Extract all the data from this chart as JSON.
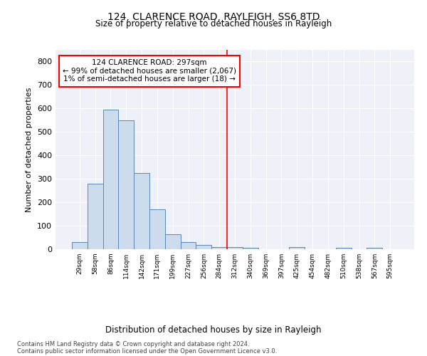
{
  "title": "124, CLARENCE ROAD, RAYLEIGH, SS6 8TD",
  "subtitle": "Size of property relative to detached houses in Rayleigh",
  "xlabel": "Distribution of detached houses by size in Rayleigh",
  "ylabel": "Number of detached properties",
  "bin_labels": [
    "29sqm",
    "58sqm",
    "86sqm",
    "114sqm",
    "142sqm",
    "171sqm",
    "199sqm",
    "227sqm",
    "256sqm",
    "284sqm",
    "312sqm",
    "340sqm",
    "369sqm",
    "397sqm",
    "425sqm",
    "454sqm",
    "482sqm",
    "510sqm",
    "538sqm",
    "567sqm",
    "595sqm"
  ],
  "bar_values": [
    30,
    278,
    596,
    550,
    325,
    170,
    65,
    30,
    18,
    10,
    8,
    5,
    0,
    0,
    8,
    0,
    0,
    5,
    0,
    5,
    0
  ],
  "bar_color": "#ccdcec",
  "bar_edge_color": "#5588bb",
  "vline_x": 9.5,
  "vline_color": "red",
  "annotation_text": "124 CLARENCE ROAD: 297sqm\n← 99% of detached houses are smaller (2,067)\n1% of semi-detached houses are larger (18) →",
  "annotation_box_color": "red",
  "ylim": [
    0,
    850
  ],
  "yticks": [
    0,
    100,
    200,
    300,
    400,
    500,
    600,
    700,
    800
  ],
  "background_color": "#eef2f8",
  "footer_line1": "Contains HM Land Registry data © Crown copyright and database right 2024.",
  "footer_line2": "Contains public sector information licensed under the Open Government Licence v3.0."
}
